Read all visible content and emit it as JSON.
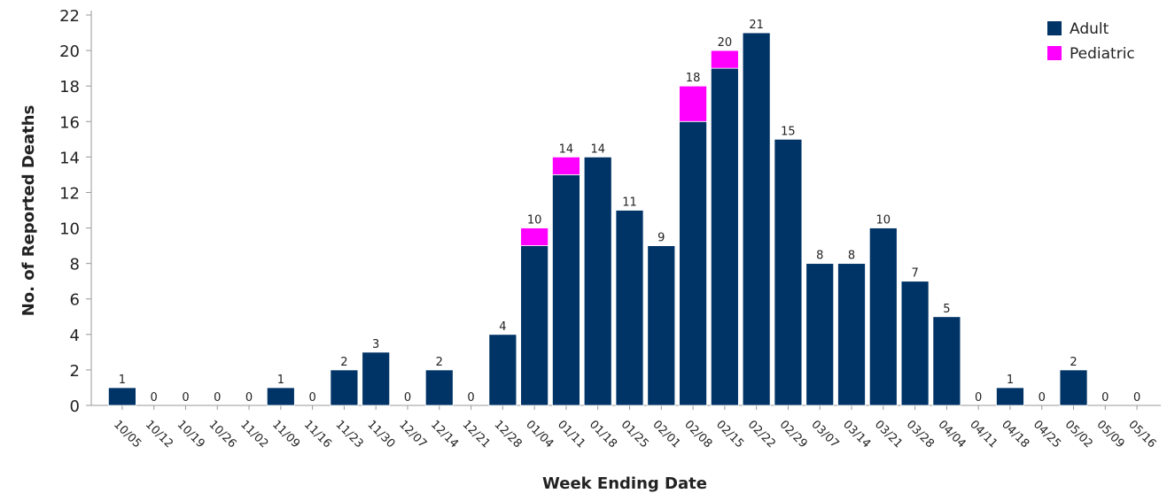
{
  "chart_data": {
    "type": "stacked-bar",
    "x_label": "Week Ending Date",
    "y_label": "No. of Reported Deaths",
    "categories": [
      "10/05",
      "10/12",
      "10/19",
      "10/26",
      "11/02",
      "11/09",
      "11/16",
      "11/23",
      "11/30",
      "12/07",
      "12/14",
      "12/21",
      "12/28",
      "01/04",
      "01/11",
      "01/18",
      "01/25",
      "02/01",
      "02/08",
      "02/15",
      "02/22",
      "02/29",
      "03/07",
      "03/14",
      "03/21",
      "03/28",
      "04/04",
      "04/11",
      "04/18",
      "04/25",
      "05/02",
      "05/09",
      "05/16"
    ],
    "series": [
      {
        "name": "Adult",
        "color": "#003366",
        "values": [
          1,
          0,
          0,
          0,
          0,
          1,
          0,
          2,
          3,
          0,
          2,
          0,
          4,
          9,
          13,
          14,
          11,
          9,
          16,
          19,
          21,
          15,
          8,
          8,
          10,
          7,
          5,
          0,
          1,
          0,
          2,
          0,
          0
        ]
      },
      {
        "name": "Pediatric",
        "color": "#ff00ff",
        "values": [
          0,
          0,
          0,
          0,
          0,
          0,
          0,
          0,
          0,
          0,
          0,
          0,
          0,
          1,
          1,
          0,
          0,
          0,
          2,
          1,
          0,
          0,
          0,
          0,
          0,
          0,
          0,
          0,
          0,
          0,
          0,
          0,
          0
        ]
      }
    ],
    "totals": [
      1,
      0,
      0,
      0,
      0,
      1,
      0,
      2,
      3,
      0,
      2,
      0,
      4,
      10,
      14,
      14,
      11,
      9,
      18,
      20,
      21,
      15,
      8,
      8,
      10,
      7,
      5,
      0,
      1,
      0,
      2,
      0,
      0
    ],
    "ylim": [
      0,
      22
    ],
    "yticks": [
      0,
      2,
      4,
      6,
      8,
      10,
      12,
      14,
      16,
      18,
      20,
      22
    ],
    "legend": "top-right"
  }
}
